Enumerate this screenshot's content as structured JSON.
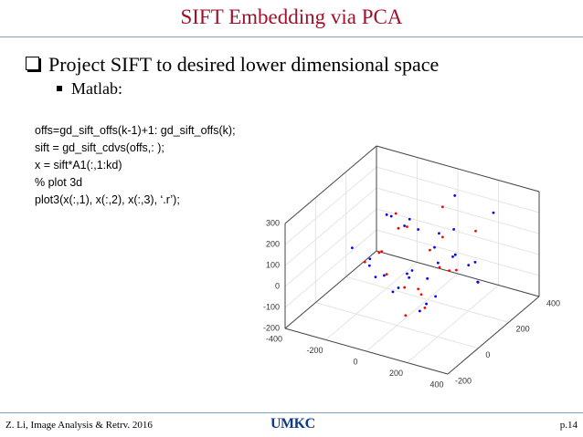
{
  "title": "SIFT Embedding via PCA",
  "bullets": [
    "Project SIFT to desired lower dimensional space",
    "Matlab:"
  ],
  "code": [
    "offs=gd_sift_offs(k-1)+1: gd_sift_offs(k);",
    "sift = gd_sift_cdvs(offs,: );",
    "x = sift*A1(:,1:kd)",
    "% plot 3d",
    "plot3(x(:,1), x(:,2), x(:,3), ‘.r’);"
  ],
  "figure": {
    "type": "scatter3d",
    "xlim": [
      -400,
      400
    ],
    "ylim": [
      -200,
      400
    ],
    "zlim": [
      -200,
      300
    ],
    "xticks": [
      -400,
      -200,
      0,
      200,
      400
    ],
    "yticks": [
      -200,
      0,
      200,
      400
    ],
    "zticks": [
      -200,
      -100,
      0,
      100,
      200,
      300
    ],
    "series": [
      {
        "color": "#ff0000",
        "points": [
          [
            -150,
            100,
            50
          ],
          [
            -100,
            200,
            120
          ],
          [
            0,
            50,
            -50
          ],
          [
            50,
            150,
            80
          ],
          [
            120,
            0,
            -20
          ],
          [
            200,
            250,
            150
          ],
          [
            -200,
            150,
            0
          ],
          [
            80,
            -50,
            -100
          ],
          [
            150,
            100,
            200
          ],
          [
            -50,
            0,
            30
          ],
          [
            250,
            200,
            -50
          ],
          [
            0,
            300,
            180
          ],
          [
            100,
            50,
            -120
          ],
          [
            -120,
            -50,
            100
          ],
          [
            180,
            150,
            20
          ],
          [
            30,
            100,
            -80
          ],
          [
            -180,
            250,
            60
          ],
          [
            220,
            50,
            90
          ],
          [
            60,
            200,
            -30
          ],
          [
            -80,
            100,
            250
          ]
        ]
      },
      {
        "color": "#0000ff",
        "points": [
          [
            -200,
            200,
            150
          ],
          [
            -150,
            250,
            80
          ],
          [
            -100,
            50,
            -20
          ],
          [
            -50,
            150,
            200
          ],
          [
            0,
            200,
            -100
          ],
          [
            50,
            0,
            60
          ],
          [
            100,
            250,
            10
          ],
          [
            150,
            -50,
            -60
          ],
          [
            200,
            100,
            120
          ],
          [
            250,
            300,
            220
          ],
          [
            -180,
            100,
            -80
          ],
          [
            -120,
            300,
            40
          ],
          [
            -60,
            -100,
            130
          ],
          [
            20,
            250,
            90
          ],
          [
            70,
            100,
            -140
          ],
          [
            130,
            200,
            170
          ],
          [
            190,
            0,
            -10
          ],
          [
            240,
            150,
            60
          ],
          [
            -30,
            50,
            -60
          ],
          [
            90,
            150,
            30
          ],
          [
            -220,
            0,
            110
          ],
          [
            160,
            300,
            -40
          ],
          [
            -90,
            200,
            -120
          ],
          [
            40,
            -80,
            20
          ],
          [
            110,
            100,
            140
          ],
          [
            210,
            250,
            -90
          ],
          [
            -140,
            150,
            190
          ],
          [
            0,
            100,
            0
          ],
          [
            60,
            300,
            250
          ],
          [
            -170,
            50,
            40
          ]
        ]
      }
    ]
  },
  "footer": {
    "left": "Z. Li, Image Analysis & Retrv. 2016",
    "logo": "UMKC",
    "page": "p.14"
  }
}
